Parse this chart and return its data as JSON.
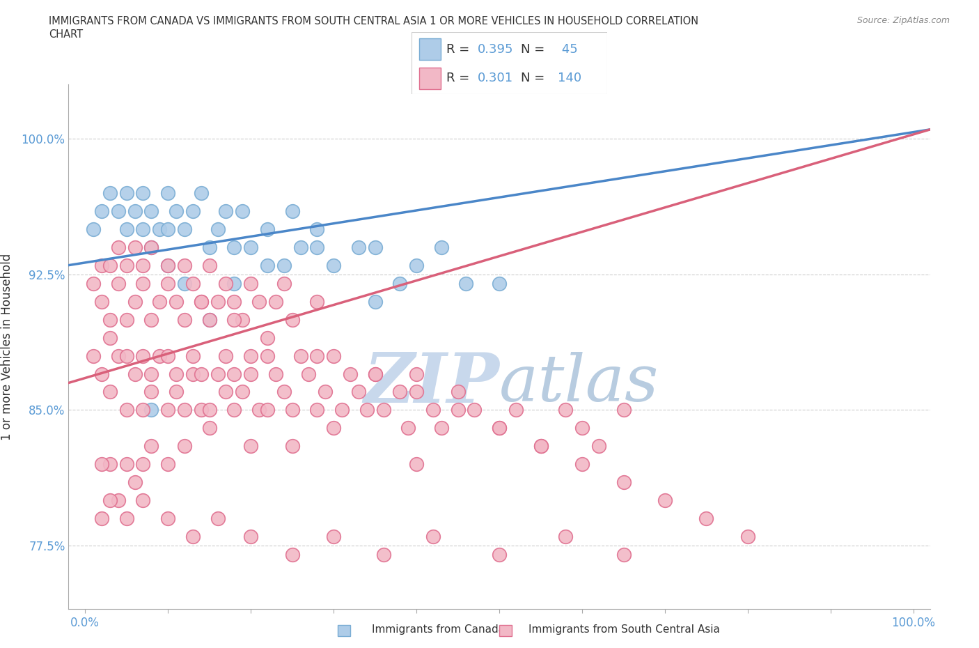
{
  "title_line1": "IMMIGRANTS FROM CANADA VS IMMIGRANTS FROM SOUTH CENTRAL ASIA 1 OR MORE VEHICLES IN HOUSEHOLD CORRELATION",
  "title_line2": "CHART",
  "source": "Source: ZipAtlas.com",
  "ylabel": "1 or more Vehicles in Household",
  "y_ticks": [
    77.5,
    85.0,
    92.5,
    100.0
  ],
  "y_tick_labels": [
    "77.5%",
    "85.0%",
    "92.5%",
    "100.0%"
  ],
  "xlim": [
    -2,
    102
  ],
  "ylim": [
    74,
    103
  ],
  "canada_color": "#aecce8",
  "canada_edge": "#7aadd4",
  "asia_color": "#f2b8c6",
  "asia_edge": "#e07090",
  "canada_line_color": "#4a86c8",
  "asia_line_color": "#d9607a",
  "canada_R": 0.395,
  "canada_N": 45,
  "asia_R": 0.301,
  "asia_N": 140,
  "watermark_zip": "ZIP",
  "watermark_atlas": "atlas",
  "watermark_color": "#c8d8e8",
  "legend_label_canada": "Immigrants from Canada",
  "legend_label_asia": "Immigrants from South Central Asia",
  "canada_scatter_x": [
    1,
    2,
    3,
    4,
    5,
    5,
    6,
    7,
    7,
    8,
    8,
    9,
    10,
    10,
    11,
    12,
    13,
    14,
    15,
    16,
    17,
    18,
    19,
    20,
    22,
    24,
    25,
    26,
    28,
    30,
    33,
    35,
    38,
    40,
    43,
    46,
    50,
    8,
    10,
    12,
    15,
    18,
    22,
    28,
    35
  ],
  "canada_scatter_y": [
    95,
    96,
    97,
    96,
    97,
    95,
    96,
    97,
    95,
    94,
    96,
    95,
    97,
    95,
    96,
    95,
    96,
    97,
    94,
    95,
    96,
    94,
    96,
    94,
    95,
    93,
    96,
    94,
    95,
    93,
    94,
    94,
    92,
    93,
    94,
    92,
    92,
    85,
    93,
    92,
    90,
    92,
    93,
    94,
    91
  ],
  "asia_scatter_x": [
    1,
    1,
    2,
    2,
    2,
    3,
    3,
    3,
    3,
    4,
    4,
    4,
    5,
    5,
    5,
    5,
    6,
    6,
    6,
    7,
    7,
    7,
    7,
    8,
    8,
    8,
    8,
    9,
    9,
    10,
    10,
    10,
    10,
    11,
    11,
    11,
    12,
    12,
    12,
    13,
    13,
    13,
    14,
    14,
    14,
    15,
    15,
    15,
    16,
    16,
    17,
    17,
    17,
    18,
    18,
    18,
    19,
    19,
    20,
    20,
    20,
    21,
    21,
    22,
    22,
    23,
    23,
    24,
    24,
    25,
    25,
    26,
    27,
    28,
    28,
    29,
    30,
    31,
    32,
    33,
    34,
    35,
    36,
    38,
    39,
    40,
    42,
    43,
    45,
    47,
    50,
    52,
    55,
    58,
    60,
    62,
    65,
    40,
    30,
    25,
    20,
    15,
    12,
    10,
    8,
    7,
    6,
    5,
    4,
    3,
    2,
    2,
    3,
    5,
    7,
    10,
    13,
    16,
    20,
    25,
    30,
    36,
    42,
    50,
    58,
    65,
    14,
    18,
    22,
    28,
    35,
    40,
    45,
    50,
    55,
    60,
    65,
    70,
    75,
    80
  ],
  "asia_scatter_y": [
    92,
    88,
    91,
    87,
    93,
    90,
    86,
    93,
    89,
    88,
    92,
    94,
    85,
    90,
    93,
    88,
    87,
    91,
    94,
    88,
    92,
    85,
    93,
    86,
    90,
    94,
    87,
    91,
    88,
    92,
    85,
    93,
    88,
    86,
    91,
    87,
    90,
    85,
    93,
    87,
    92,
    88,
    85,
    91,
    87,
    90,
    85,
    93,
    87,
    91,
    86,
    92,
    88,
    85,
    91,
    87,
    90,
    86,
    87,
    92,
    88,
    85,
    91,
    88,
    85,
    87,
    91,
    86,
    92,
    85,
    90,
    88,
    87,
    85,
    91,
    86,
    88,
    85,
    87,
    86,
    85,
    87,
    85,
    86,
    84,
    87,
    85,
    84,
    86,
    85,
    84,
    85,
    83,
    85,
    84,
    83,
    85,
    82,
    84,
    83,
    83,
    84,
    83,
    82,
    83,
    82,
    81,
    82,
    80,
    82,
    82,
    79,
    80,
    79,
    80,
    79,
    78,
    79,
    78,
    77,
    78,
    77,
    78,
    77,
    78,
    77,
    91,
    90,
    89,
    88,
    87,
    86,
    85,
    84,
    83,
    82,
    81,
    80,
    79,
    78
  ]
}
